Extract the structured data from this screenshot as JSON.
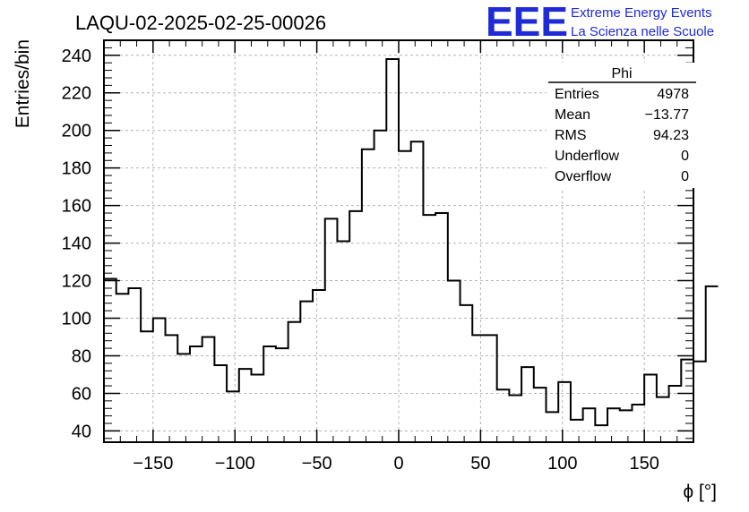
{
  "chart_data": {
    "type": "histogram",
    "title": "LAQU-02-2025-02-25-00026",
    "xlabel": "ϕ [°]",
    "ylabel": "Entries/bin",
    "xlim": [
      -180,
      180
    ],
    "ylim": [
      34,
      248
    ],
    "grid": true,
    "bin_edges_start": -180,
    "bin_width": 7.5,
    "values": [
      121,
      113,
      116,
      93,
      100,
      91,
      81,
      85,
      90,
      75,
      61,
      73,
      70,
      85,
      84,
      98,
      109,
      115,
      153,
      141,
      157,
      190,
      200,
      238,
      189,
      194,
      155,
      156,
      120,
      107,
      91,
      91,
      62,
      59,
      74,
      63,
      50,
      66,
      46,
      52,
      43,
      52,
      51,
      54,
      70,
      58,
      64,
      78,
      77,
      117
    ],
    "x_ticks": [
      -150,
      -100,
      -50,
      0,
      50,
      100,
      150
    ],
    "x_tick_labels": [
      "−150",
      "−100",
      "−50",
      "0",
      "50",
      "100",
      "150"
    ],
    "y_ticks": [
      40,
      60,
      80,
      100,
      120,
      140,
      160,
      180,
      200,
      220,
      240
    ],
    "y_tick_labels": [
      "40",
      "60",
      "80",
      "100",
      "120",
      "140",
      "160",
      "180",
      "200",
      "220",
      "240"
    ],
    "stats": {
      "title": "Phi",
      "rows": [
        {
          "label": "Entries",
          "value": "4978"
        },
        {
          "label": "Mean",
          "value": "−13.77"
        },
        {
          "label": "RMS",
          "value": "94.23"
        },
        {
          "label": "Underflow",
          "value": "0"
        },
        {
          "label": "Overflow",
          "value": "0"
        }
      ]
    }
  },
  "logo": {
    "mark": "EEE",
    "line1": "Extreme Energy Events",
    "line2": "La Scienza nelle Scuole"
  }
}
